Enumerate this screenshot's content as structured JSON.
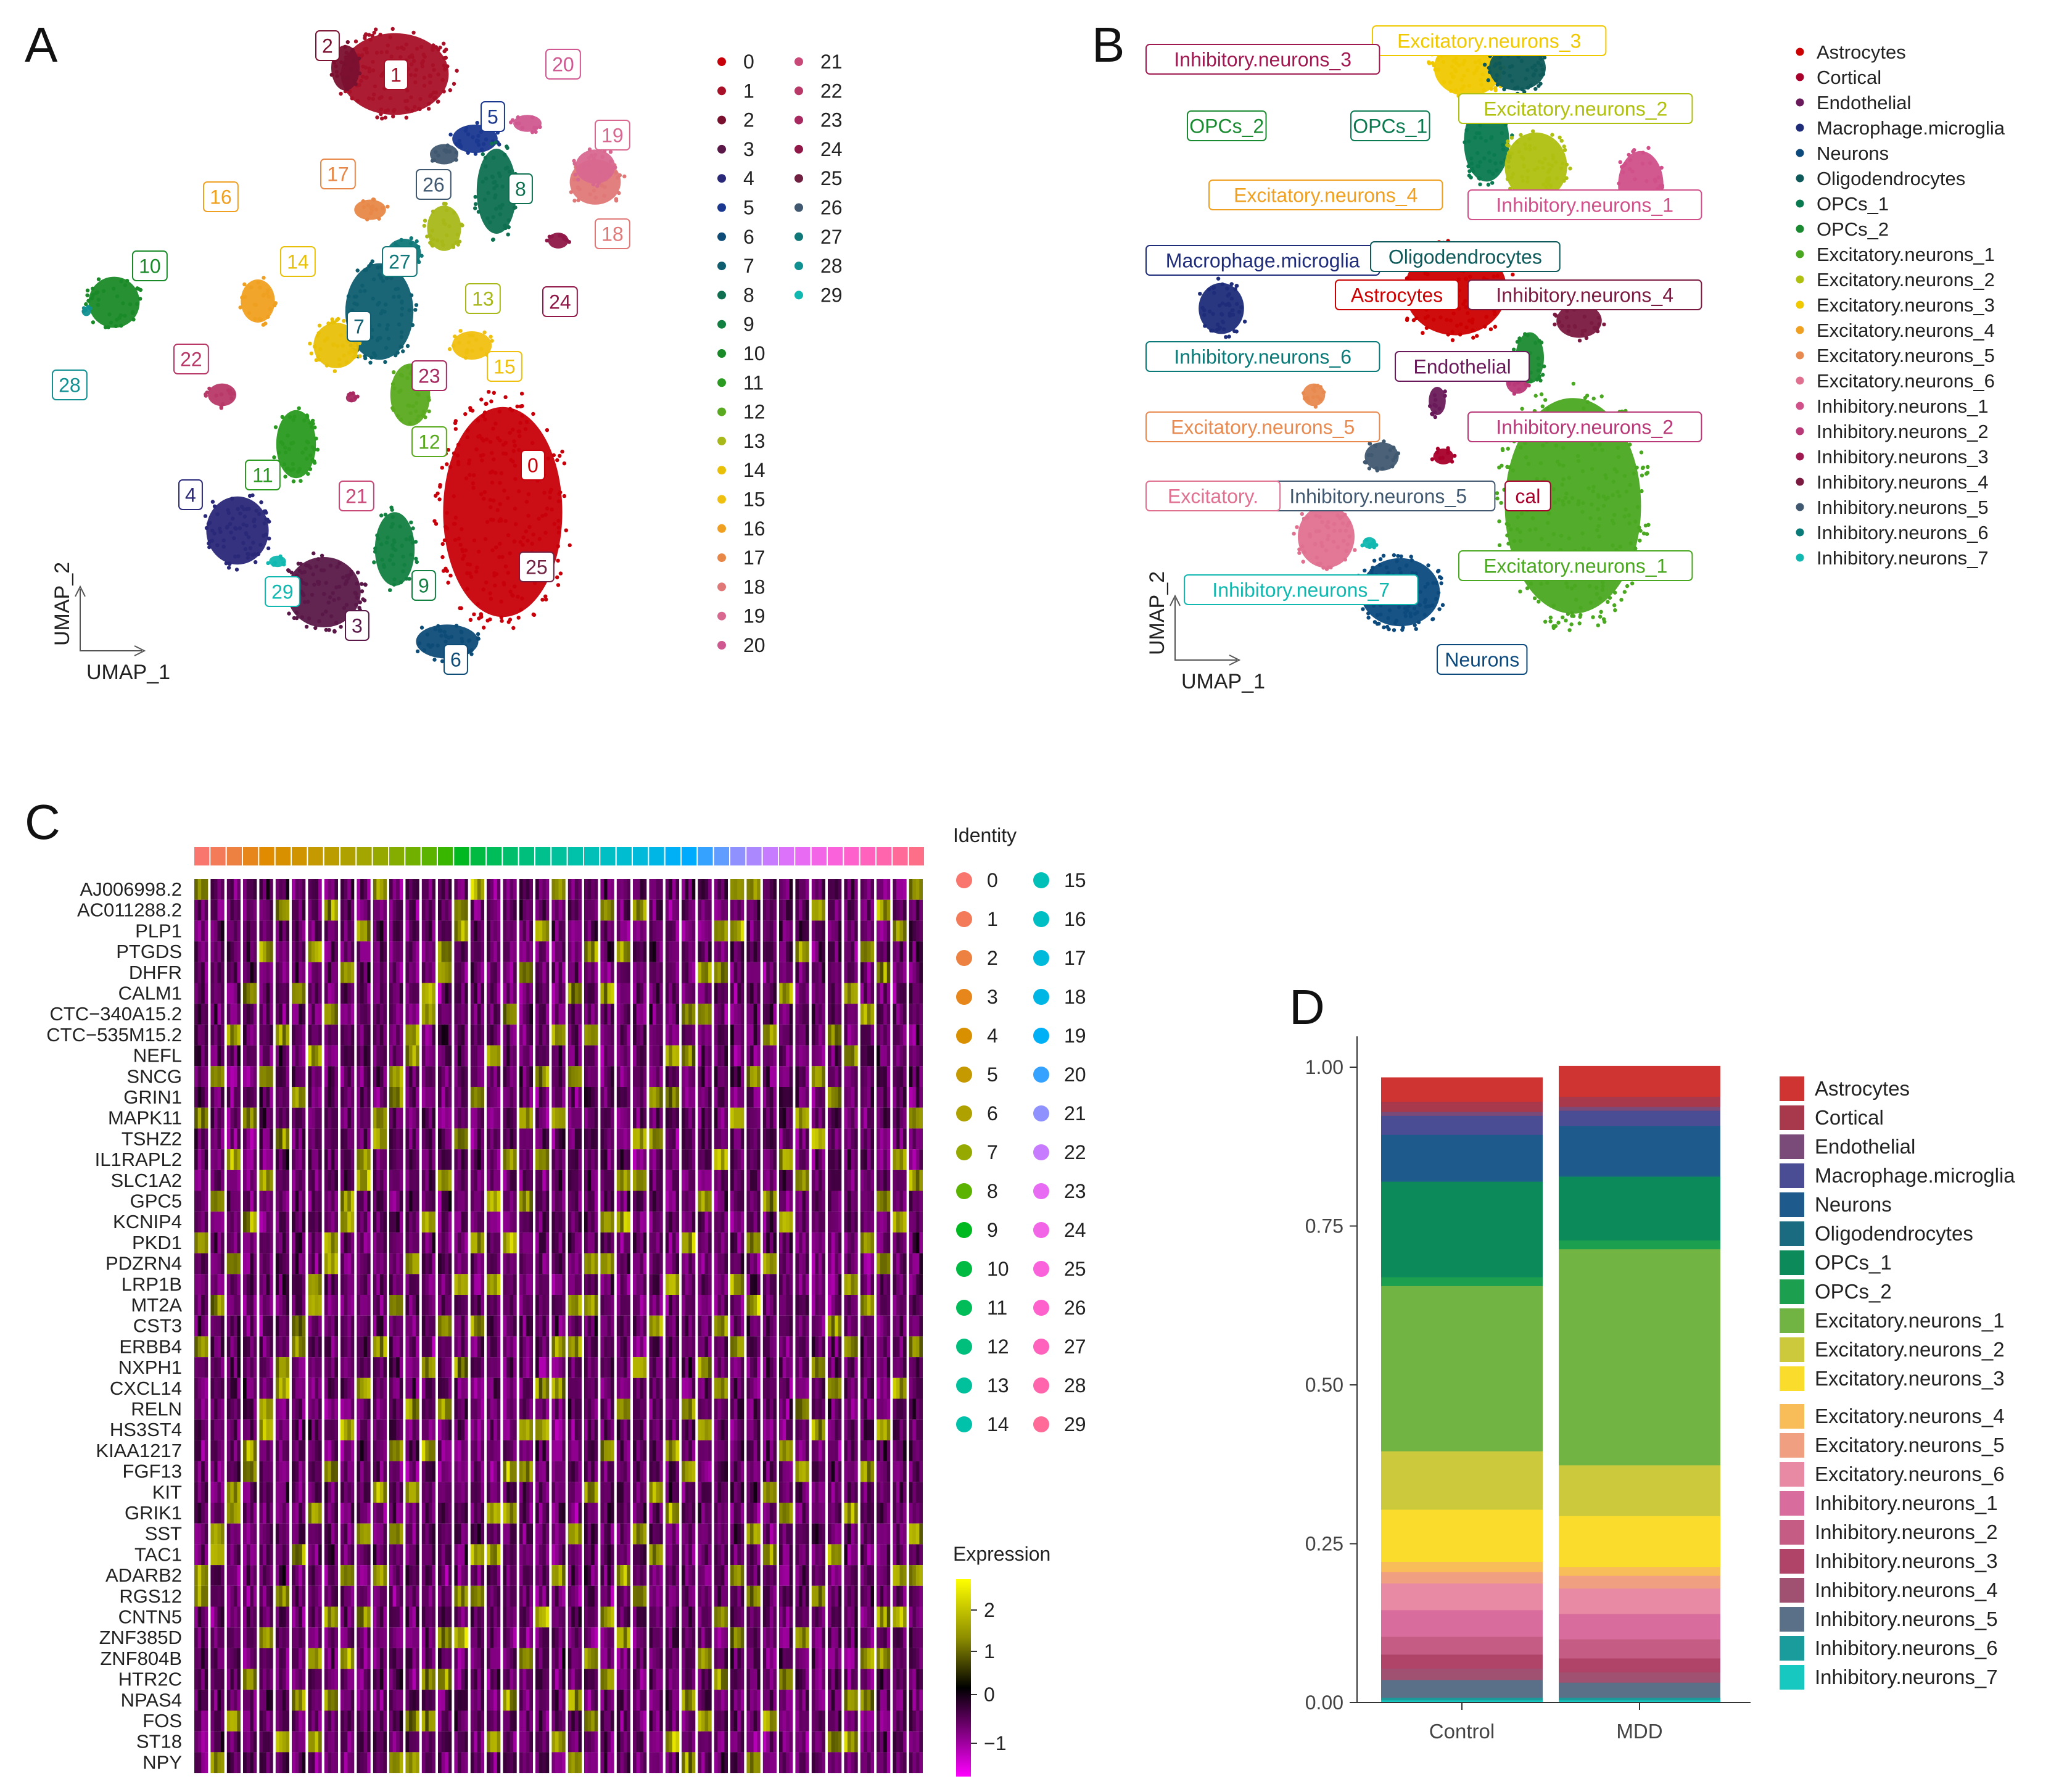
{
  "panels": {
    "A": {
      "letter": "A",
      "xlabel": "UMAP_1",
      "ylabel": "UMAP_2",
      "clusters": [
        {
          "id": "0",
          "color": "#C8000A"
        },
        {
          "id": "1",
          "color": "#A81028"
        },
        {
          "id": "2",
          "color": "#7A1030"
        },
        {
          "id": "3",
          "color": "#5A1848"
        },
        {
          "id": "4",
          "color": "#2A2878"
        },
        {
          "id": "5",
          "color": "#1A3890"
        },
        {
          "id": "6",
          "color": "#0E4C78"
        },
        {
          "id": "7",
          "color": "#0E5E70"
        },
        {
          "id": "8",
          "color": "#0E7050"
        },
        {
          "id": "9",
          "color": "#128040"
        },
        {
          "id": "10",
          "color": "#1A8A28"
        },
        {
          "id": "11",
          "color": "#2A9A20"
        },
        {
          "id": "12",
          "color": "#5AAA20"
        },
        {
          "id": "13",
          "color": "#A8B818"
        },
        {
          "id": "14",
          "color": "#E8C008"
        },
        {
          "id": "15",
          "color": "#F0C010"
        },
        {
          "id": "16",
          "color": "#F0A020"
        },
        {
          "id": "17",
          "color": "#E88848"
        },
        {
          "id": "18",
          "color": "#E07878"
        },
        {
          "id": "19",
          "color": "#D86890"
        },
        {
          "id": "20",
          "color": "#D05890"
        },
        {
          "id": "21",
          "color": "#C84878"
        },
        {
          "id": "22",
          "color": "#B83868"
        },
        {
          "id": "23",
          "color": "#A82860"
        },
        {
          "id": "24",
          "color": "#901848"
        },
        {
          "id": "25",
          "color": "#702040"
        },
        {
          "id": "26",
          "color": "#405870"
        },
        {
          "id": "27",
          "color": "#107878"
        },
        {
          "id": "28",
          "color": "#109090"
        },
        {
          "id": "29",
          "color": "#10B8B0"
        }
      ]
    },
    "B": {
      "letter": "B",
      "xlabel": "UMAP_1",
      "ylabel": "UMAP_2",
      "cell_types": [
        {
          "name": "Astrocytes",
          "color": "#CC0000"
        },
        {
          "name": "Cortical",
          "color": "#A8002A"
        },
        {
          "name": "Endothelial",
          "color": "#6A1A5A"
        },
        {
          "name": "Macrophage.microglia",
          "color": "#1E2C7A"
        },
        {
          "name": "Neurons",
          "color": "#0C4A7E"
        },
        {
          "name": "Oligodendrocytes",
          "color": "#0E5A5A"
        },
        {
          "name": "OPCs_1",
          "color": "#0A7A50"
        },
        {
          "name": "OPCs_2",
          "color": "#1A8A30"
        },
        {
          "name": "Excitatory.neurons_1",
          "color": "#4AA820"
        },
        {
          "name": "Excitatory.neurons_2",
          "color": "#B0C010"
        },
        {
          "name": "Excitatory.neurons_3",
          "color": "#F0C800"
        },
        {
          "name": "Excitatory.neurons_4",
          "color": "#F0A020"
        },
        {
          "name": "Excitatory.neurons_5",
          "color": "#E88A50"
        },
        {
          "name": "Excitatory.neurons_6",
          "color": "#E07090"
        },
        {
          "name": "Inhibitory.neurons_1",
          "color": "#D0508A"
        },
        {
          "name": "Inhibitory.neurons_2",
          "color": "#B83878"
        },
        {
          "name": "Inhibitory.neurons_3",
          "color": "#A01850"
        },
        {
          "name": "Inhibitory.neurons_4",
          "color": "#7A1A40"
        },
        {
          "name": "Inhibitory.neurons_5",
          "color": "#405870"
        },
        {
          "name": "Inhibitory.neurons_6",
          "color": "#0A7A78"
        },
        {
          "name": "Inhibitory.neurons_7",
          "color": "#10B8B0"
        }
      ],
      "map_labels": [
        "Excitatory.neurons_3",
        "Inhibitory.neurons_3",
        "OPCs_2",
        "OPCs_1",
        "Excitatory.neurons_2",
        "Excitatory.neurons_4",
        "Inhibitory.neurons_1",
        "Macrophage.microglia",
        "Oligodendrocytes",
        "Astrocytes",
        "Inhibitory.neurons_4",
        "Inhibitory.neurons_6",
        "Endothelial",
        "Excitatory.neurons_5",
        "Inhibitory.neurons_2",
        "Excitatory.",
        "Inhibitory.neurons_5",
        "cal",
        "Excitatory.neurons_1",
        "Inhibitory.neurons_7",
        "Neurons"
      ]
    },
    "C": {
      "letter": "C",
      "identity_title": "Identity",
      "expression_title": "Expression",
      "genes": [
        "AJ006998.2",
        "AC011288.2",
        "PLP1",
        "PTGDS",
        "DHFR",
        "CALM1",
        "CTC−340A15.2",
        "CTC−535M15.2",
        "NEFL",
        "SNCG",
        "GRIN1",
        "MAPK11",
        "TSHZ2",
        "IL1RAPL2",
        "SLC1A2",
        "GPC5",
        "KCNIP4",
        "PKD1",
        "PDZRN4",
        "LRP1B",
        "MT2A",
        "CST3",
        "ERBB4",
        "NXPH1",
        "CXCL14",
        "RELN",
        "HS3ST4",
        "KIAA1217",
        "FGF13",
        "KIT",
        "GRIK1",
        "SST",
        "TAC1",
        "ADARB2",
        "RGS12",
        "CNTN5",
        "ZNF385D",
        "ZNF804B",
        "HTR2C",
        "NPAS4",
        "FOS",
        "ST18",
        "NPY"
      ],
      "identity_colors": [
        "#F8766D",
        "#F37B59",
        "#ED8141",
        "#E7861B",
        "#E08B00",
        "#D89000",
        "#CF9400",
        "#C59900",
        "#BB9D00",
        "#AFA100",
        "#A3A500",
        "#95A900",
        "#85AD00",
        "#72B000",
        "#5BB300",
        "#39B600",
        "#00B81F",
        "#00BA42",
        "#00BC59",
        "#00BE6C",
        "#00BF7D",
        "#00C08D",
        "#00C19C",
        "#00C1AA",
        "#00C0B8",
        "#00BFC4",
        "#00BDD0",
        "#00BADB",
        "#00B6E5",
        "#00B0F6",
        "#00ABFD",
        "#35A2FF",
        "#619CFF",
        "#8F91FF",
        "#AC88FF",
        "#C77CFF",
        "#DC71FA",
        "#E76BF3",
        "#F265E7",
        "#FA62DB",
        "#FF61CC",
        "#FF62BC",
        "#FF65AC",
        "#FF6A98",
        "#FD6F86"
      ],
      "identity_legend_col1": [
        {
          "id": "0",
          "color": "#F8766D"
        },
        {
          "id": "1",
          "color": "#F37B59"
        },
        {
          "id": "2",
          "color": "#ED8141"
        },
        {
          "id": "3",
          "color": "#E7861B"
        },
        {
          "id": "4",
          "color": "#D89000"
        },
        {
          "id": "5",
          "color": "#C59900"
        },
        {
          "id": "6",
          "color": "#AFA100"
        },
        {
          "id": "7",
          "color": "#95A900"
        },
        {
          "id": "8",
          "color": "#5BB300"
        },
        {
          "id": "9",
          "color": "#00B81F"
        },
        {
          "id": "10",
          "color": "#00BA42"
        },
        {
          "id": "11",
          "color": "#00BC59"
        },
        {
          "id": "12",
          "color": "#00BF7D"
        },
        {
          "id": "13",
          "color": "#00C19C"
        },
        {
          "id": "14",
          "color": "#00C1AA"
        }
      ],
      "identity_legend_col2": [
        {
          "id": "15",
          "color": "#00C0B8"
        },
        {
          "id": "16",
          "color": "#00BFC4"
        },
        {
          "id": "17",
          "color": "#00BADB"
        },
        {
          "id": "18",
          "color": "#00B6E5"
        },
        {
          "id": "19",
          "color": "#00B0F6"
        },
        {
          "id": "20",
          "color": "#35A2FF"
        },
        {
          "id": "21",
          "color": "#8F91FF"
        },
        {
          "id": "22",
          "color": "#C77CFF"
        },
        {
          "id": "23",
          "color": "#E76BF3"
        },
        {
          "id": "24",
          "color": "#F265E7"
        },
        {
          "id": "25",
          "color": "#FA62DB"
        },
        {
          "id": "26",
          "color": "#FF61CC"
        },
        {
          "id": "27",
          "color": "#FF62BC"
        },
        {
          "id": "28",
          "color": "#FF65AC"
        },
        {
          "id": "29",
          "color": "#FF6A98"
        }
      ],
      "expression_ticks": [
        "2",
        "1",
        "0",
        "−1"
      ]
    },
    "D": {
      "letter": "D"
    }
  },
  "chart_data": [
    {
      "type": "bar",
      "stacked": true,
      "title": "D",
      "xlabel": "",
      "ylabel": "",
      "categories": [
        "Control",
        "MDD"
      ],
      "ylim": [
        0,
        1
      ],
      "yticks": [
        "0.00",
        "0.25",
        "0.50",
        "0.75",
        "1.00"
      ],
      "series": [
        {
          "name": "Inhibitory.neurons_7",
          "color": "#17C8C0",
          "values": [
            0.004,
            0.004
          ]
        },
        {
          "name": "Inhibitory.neurons_6",
          "color": "#1A9C9C",
          "values": [
            0.004,
            0.004
          ]
        },
        {
          "name": "Inhibitory.neurons_5",
          "color": "#5A7088",
          "values": [
            0.028,
            0.024
          ]
        },
        {
          "name": "Inhibitory.neurons_4",
          "color": "#A05070",
          "values": [
            0.018,
            0.016
          ]
        },
        {
          "name": "Inhibitory.neurons_3",
          "color": "#B04468",
          "values": [
            0.022,
            0.022
          ]
        },
        {
          "name": "Inhibitory.neurons_2",
          "color": "#C45C84",
          "values": [
            0.028,
            0.03
          ]
        },
        {
          "name": "Inhibitory.neurons_1",
          "color": "#D86C9C",
          "values": [
            0.042,
            0.04
          ]
        },
        {
          "name": "Excitatory.neurons_6",
          "color": "#E88AA4",
          "values": [
            0.042,
            0.04
          ]
        },
        {
          "name": "Excitatory.neurons_5",
          "color": "#F0A080",
          "values": [
            0.018,
            0.02
          ]
        },
        {
          "name": "Excitatory.neurons_4",
          "color": "#F8BC58",
          "values": [
            0.016,
            0.014
          ]
        },
        {
          "name": "Excitatory.neurons_3",
          "color": "#FADC2C",
          "values": [
            0.082,
            0.08
          ]
        },
        {
          "name": "Excitatory.neurons_2",
          "color": "#CCCA3C",
          "values": [
            0.092,
            0.08
          ]
        },
        {
          "name": "Excitatory.neurons_1",
          "color": "#72B444",
          "values": [
            0.26,
            0.34
          ]
        },
        {
          "name": "OPCs_2",
          "color": "#1CA050",
          "values": [
            0.014,
            0.014
          ]
        },
        {
          "name": "OPCs_1",
          "color": "#0C8A5A",
          "values": [
            0.15,
            0.1
          ]
        },
        {
          "name": "Oligodendrocytes",
          "color": "#1A6A80",
          "values": [
            0.002,
            0.002
          ]
        },
        {
          "name": "Neurons",
          "color": "#1E5A8C",
          "values": [
            0.072,
            0.078
          ]
        },
        {
          "name": "Macrophage.microglia",
          "color": "#4A4C94",
          "values": [
            0.03,
            0.024
          ]
        },
        {
          "name": "Endothelial",
          "color": "#7A4A78",
          "values": [
            0.006,
            0.006
          ]
        },
        {
          "name": "Cortical",
          "color": "#A8384C",
          "values": [
            0.016,
            0.016
          ]
        },
        {
          "name": "Astrocytes",
          "color": "#D03432",
          "values": [
            0.038,
            0.048
          ]
        }
      ]
    }
  ]
}
